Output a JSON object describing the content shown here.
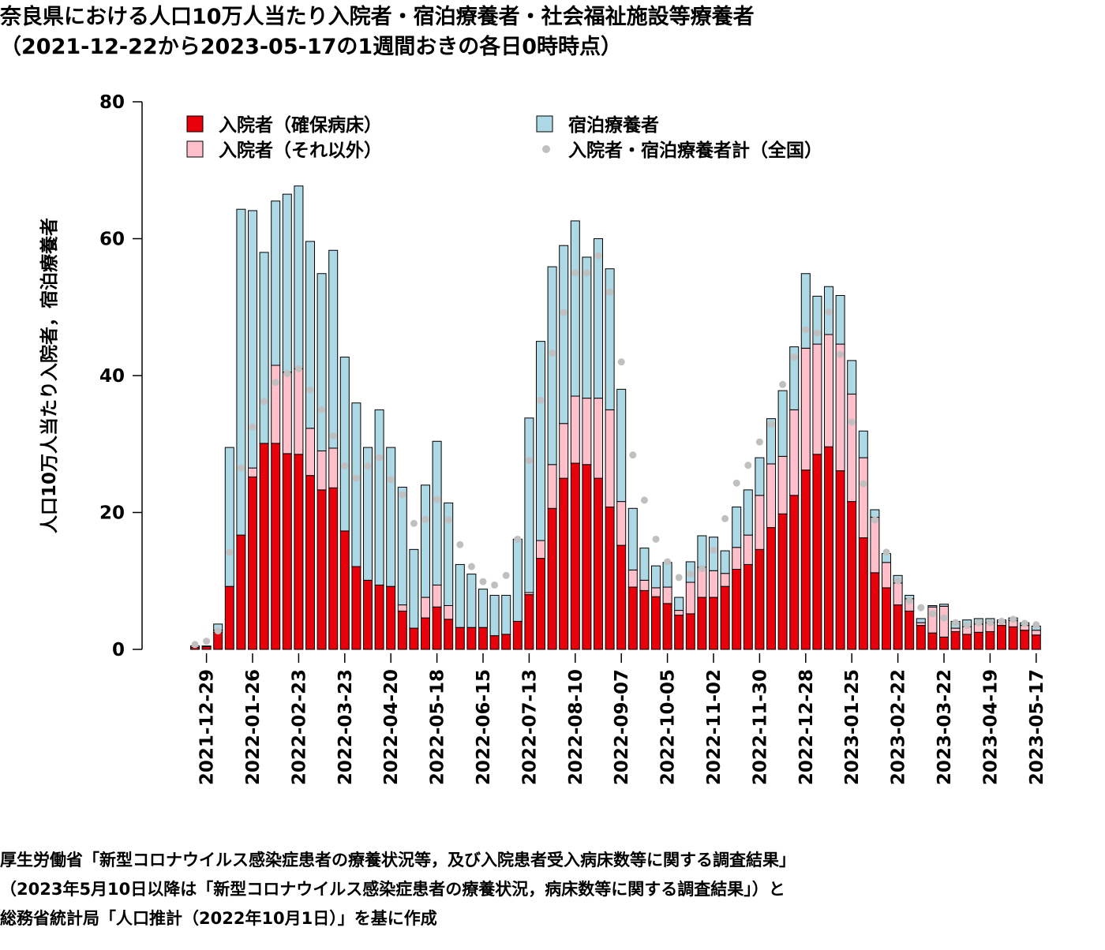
{
  "chart_data": {
    "type": "bar",
    "stacked": true,
    "title": "奈良県における人口10万人当たり入院者・宿泊療養者・社会福祉施設等療養者",
    "subtitle": "（2021-12-22から2023-05-17の1週間おきの各日0時時点）",
    "y_label": "人口10万人当たり入院者，宿泊療養者",
    "source": [
      "厚生労働省「新型コロナウイルス感染症患者の療養状況等，及び入院患者受入病床数等に関する調査結果」",
      "（2023年5月10日以降は「新型コロナウイルス感染症患者の療養状況，病床数等に関する調査結果」）と",
      "総務省統計局「人口推計（2022年10月1日）」を基に作成"
    ],
    "ylim": [
      0,
      80
    ],
    "yticks": [
      0,
      20,
      40,
      60,
      80
    ],
    "categories": [
      null,
      "2021-12-29",
      null,
      null,
      null,
      "2022-01-26",
      null,
      null,
      null,
      "2022-02-23",
      null,
      null,
      null,
      "2022-03-23",
      null,
      null,
      null,
      "2022-04-20",
      null,
      null,
      null,
      "2022-05-18",
      null,
      null,
      null,
      "2022-06-15",
      null,
      null,
      null,
      "2022-07-13",
      null,
      null,
      null,
      "2022-08-10",
      null,
      null,
      null,
      "2022-09-07",
      null,
      null,
      null,
      "2022-10-05",
      null,
      null,
      null,
      "2022-11-02",
      null,
      null,
      null,
      "2022-11-30",
      null,
      null,
      null,
      "2022-12-28",
      null,
      null,
      null,
      "2023-01-25",
      null,
      null,
      null,
      "2023-02-22",
      null,
      null,
      null,
      "2023-03-22",
      null,
      null,
      null,
      "2023-04-19",
      null,
      null,
      null,
      "2023-05-17"
    ],
    "series": [
      {
        "name": "入院者（確保病床）",
        "color": "#e8000b",
        "values": [
          0.3,
          0.4,
          2.5,
          9.2,
          16.7,
          25.2,
          30.1,
          30.1,
          28.6,
          28.5,
          25.4,
          23.3,
          23.6,
          17.3,
          12.1,
          10.1,
          9.4,
          9.2,
          5.6,
          3.1,
          4.6,
          6.2,
          4.4,
          3.2,
          3.2,
          3.2,
          2.0,
          2.2,
          4.1,
          8.0,
          13.3,
          20.6,
          25.0,
          27.2,
          27.0,
          25.0,
          20.8,
          15.2,
          9.1,
          8.6,
          7.7,
          6.7,
          5.0,
          5.2,
          7.6,
          7.6,
          9.2,
          11.7,
          12.4,
          14.6,
          17.8,
          19.8,
          22.5,
          26.2,
          28.5,
          29.6,
          26.1,
          21.6,
          16.3,
          11.2,
          9.0,
          6.5,
          5.6,
          3.5,
          2.4,
          1.8,
          2.6,
          2.2,
          2.5,
          2.6,
          3.5,
          3.3,
          2.8,
          2.1
        ]
      },
      {
        "name": "入院者（それ以外）",
        "color": "#ffc0cb",
        "values": [
          0,
          0,
          0.3,
          0,
          0,
          1.3,
          0,
          11.4,
          11.9,
          12.5,
          6.9,
          5.7,
          5.8,
          0,
          0,
          0,
          0,
          0,
          0.9,
          0,
          3.0,
          3.2,
          2.0,
          0,
          0,
          0,
          0,
          0,
          0,
          0.3,
          2.6,
          6.4,
          8.0,
          9.8,
          9.7,
          11.7,
          14.2,
          6.4,
          2.5,
          1.5,
          1.3,
          2.4,
          0.7,
          4.6,
          4.4,
          3.9,
          1.9,
          3.2,
          4.3,
          7.9,
          9.3,
          8.4,
          12.5,
          17.8,
          16.1,
          16.4,
          18.5,
          15.7,
          11.7,
          8.1,
          3.7,
          3.2,
          1.8,
          0.4,
          3.8,
          4.5,
          0.5,
          1.1,
          1.2,
          1.3,
          0.5,
          0.9,
          0.7,
          0.7
        ]
      },
      {
        "name": "宿泊療養者",
        "color": "#add8e6",
        "values": [
          0.2,
          0.1,
          0.9,
          20.3,
          47.6,
          37.6,
          27.9,
          24.0,
          26.0,
          26.7,
          27.3,
          25.9,
          28.9,
          25.4,
          23.9,
          19.4,
          25.6,
          20.3,
          17.2,
          11.5,
          16.4,
          21.0,
          15.0,
          9.2,
          7.8,
          5.6,
          5.9,
          5.7,
          12.0,
          25.5,
          29.1,
          28.9,
          26.0,
          25.6,
          20.6,
          23.3,
          20.6,
          16.4,
          9.0,
          4.7,
          3.2,
          3.6,
          1.9,
          3.0,
          4.6,
          4.9,
          3.3,
          5.9,
          6.6,
          5.5,
          6.6,
          9.6,
          9.2,
          10.9,
          7.0,
          7.0,
          7.1,
          4.9,
          3.9,
          1.1,
          1.3,
          1.1,
          0.5,
          0.6,
          0.2,
          0.3,
          1.0,
          1.0,
          0.8,
          0.6,
          0.3,
          0.4,
          0.4,
          0.6
        ]
      },
      {
        "name": "入院者・宿泊療養者計（全国）",
        "color": "#c0c0c0",
        "type": "scatter",
        "values": [
          0.7,
          1.2,
          2.7,
          14.2,
          26.5,
          32.5,
          36.2,
          39.0,
          40.3,
          41.0,
          37.9,
          35.0,
          31.2,
          26.8,
          25.0,
          26.8,
          28.0,
          24.8,
          22.6,
          18.4,
          19.0,
          21.9,
          18.9,
          15.3,
          12.1,
          9.9,
          9.4,
          10.8,
          16.1,
          27.6,
          36.4,
          43.3,
          49.2,
          55.0,
          55.0,
          57.5,
          52.2,
          42.0,
          28.4,
          21.8,
          16.1,
          12.8,
          10.5,
          11.0,
          11.8,
          14.5,
          19.1,
          24.3,
          26.9,
          30.3,
          32.9,
          38.7,
          42.7,
          46.7,
          46.2,
          49.3,
          43.1,
          33.2,
          24.2,
          18.9,
          14.2,
          10.0,
          7.1,
          6.1,
          5.2,
          4.6,
          3.9,
          3.5,
          3.9,
          3.9,
          4.1,
          4.4,
          3.8,
          3.6
        ]
      }
    ]
  }
}
